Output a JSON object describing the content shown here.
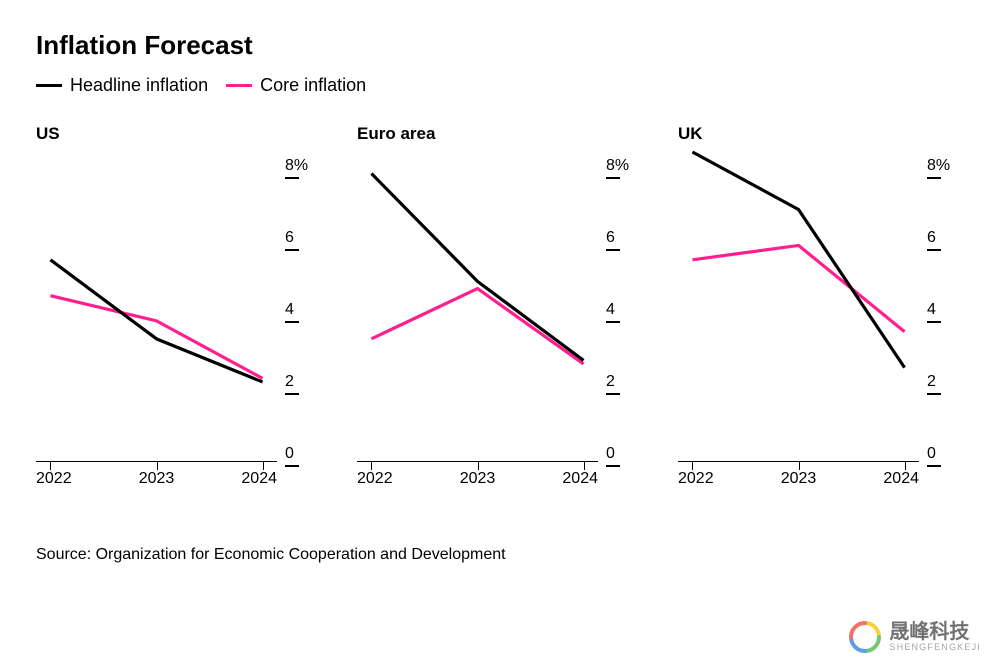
{
  "title": "Inflation Forecast",
  "legend": [
    {
      "label": "Headline inflation",
      "color": "#000000"
    },
    {
      "label": "Core inflation",
      "color": "#ff1f8f"
    }
  ],
  "y": {
    "min": 0,
    "max": 8.6,
    "ticks": [
      {
        "v": 0,
        "label": "0"
      },
      {
        "v": 2,
        "label": "2"
      },
      {
        "v": 4,
        "label": "4"
      },
      {
        "v": 6,
        "label": "6"
      },
      {
        "v": 8,
        "label": "8%"
      }
    ]
  },
  "x": {
    "categories": [
      "2022",
      "2023",
      "2024"
    ]
  },
  "line_width": 3.2,
  "panels": [
    {
      "title": "US",
      "series": {
        "headline": [
          5.6,
          3.4,
          2.2
        ],
        "core": [
          4.6,
          3.9,
          2.3
        ]
      }
    },
    {
      "title": "Euro area",
      "series": {
        "headline": [
          8.0,
          5.0,
          2.8
        ],
        "core": [
          3.4,
          4.8,
          2.7
        ]
      }
    },
    {
      "title": "UK",
      "series": {
        "headline": [
          8.6,
          7.0,
          2.6
        ],
        "core": [
          5.6,
          6.0,
          3.6
        ]
      }
    }
  ],
  "source": "Source: Organization for Economic Cooperation and Development",
  "watermark": {
    "cn": "晟峰科技",
    "en": "SHENGFENGKEJI"
  },
  "colors": {
    "headline": "#000000",
    "core": "#ff1f8f",
    "background": "#ffffff",
    "axis": "#000000"
  }
}
